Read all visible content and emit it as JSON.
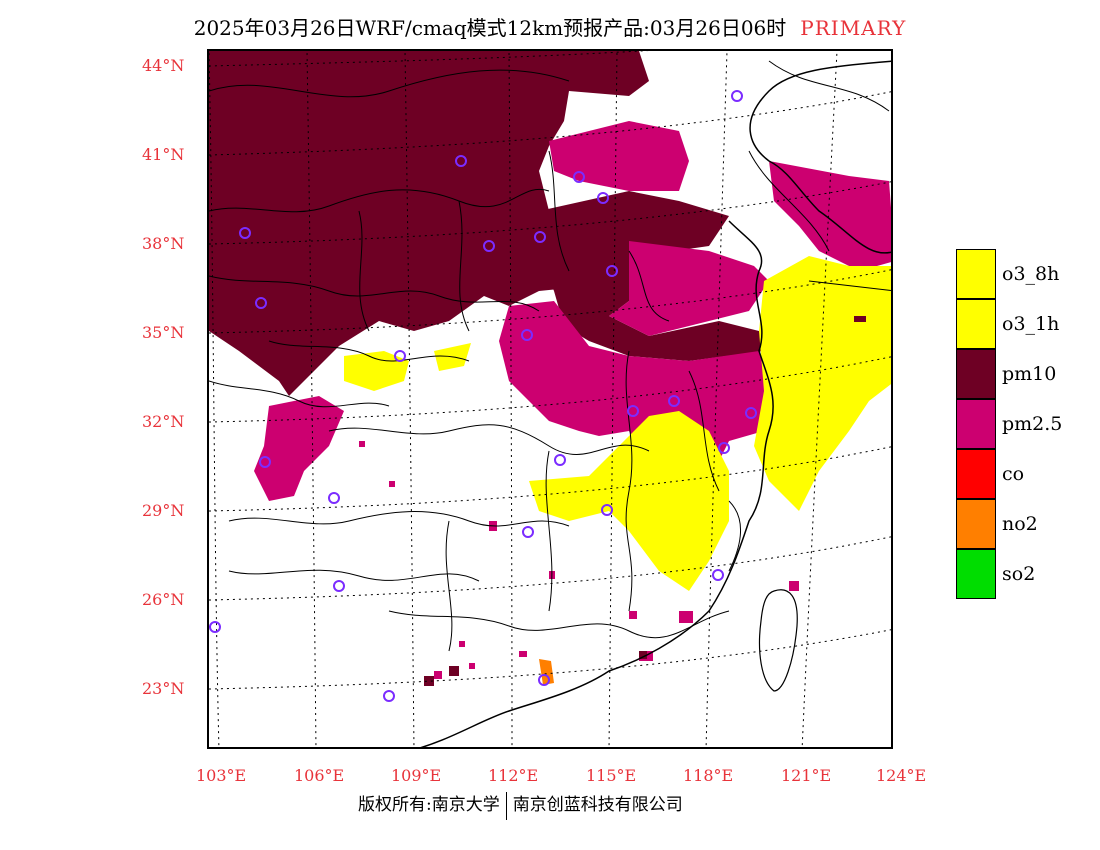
{
  "title": {
    "main": "2025年03月26日WRF/cmaq模式12km预报产品:03月26日06时",
    "tag": "PRIMARY",
    "tag_color": "#e8333a"
  },
  "axes": {
    "latitude_labels": [
      "44°N",
      "41°N",
      "38°N",
      "35°N",
      "32°N",
      "29°N",
      "26°N",
      "23°N"
    ],
    "longitude_labels": [
      "103°E",
      "106°E",
      "109°E",
      "112°E",
      "115°E",
      "118°E",
      "121°E",
      "124°E"
    ],
    "label_color": "#e8333a"
  },
  "legend": [
    {
      "label": "o3_8h",
      "color": "#ffff00"
    },
    {
      "label": "o3_1h",
      "color": "#ffff00"
    },
    {
      "label": "pm10",
      "color": "#6e0024"
    },
    {
      "label": "pm2.5",
      "color": "#cc0070"
    },
    {
      "label": "co",
      "color": "#ff0000"
    },
    {
      "label": "no2",
      "color": "#ff7f00"
    },
    {
      "label": "so2",
      "color": "#00dd00"
    }
  ],
  "map": {
    "region": "China (east)",
    "station_marker_color": "#7b2cff",
    "grid_style": "dotted"
  },
  "footer": {
    "copyright": "版权所有:南京大学",
    "company": "南京创蓝科技有限公司"
  }
}
